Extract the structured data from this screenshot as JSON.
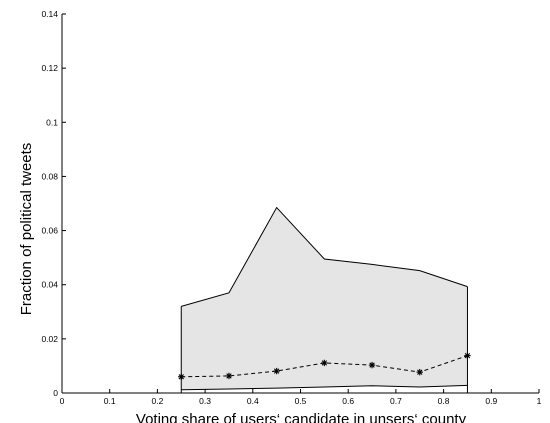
{
  "chart_data": {
    "type": "area",
    "title": "",
    "xlabel": "Voting share of users‘ candidate in unsers‘ county",
    "ylabel": "Fraction of political tweets",
    "xlim": [
      0,
      1
    ],
    "ylim": [
      0,
      0.14
    ],
    "xticks": [
      0,
      0.1,
      0.2,
      0.3,
      0.4,
      0.5,
      0.6,
      0.7,
      0.8,
      0.9,
      1
    ],
    "xtick_labels": [
      "0",
      "0.1",
      "0.2",
      "0.3",
      "0.4",
      "0.5",
      "0.6",
      "0.7",
      "0.8",
      "0.9",
      "1"
    ],
    "yticks": [
      0,
      0.02,
      0.04,
      0.06,
      0.08,
      0.1,
      0.12,
      0.14
    ],
    "ytick_labels": [
      "0",
      "0.02",
      "0.04",
      "0.06",
      "0.08",
      "0.1",
      "0.12",
      "0.14"
    ],
    "grid": false,
    "x": [
      0.25,
      0.35,
      0.45,
      0.55,
      0.65,
      0.75,
      0.85
    ],
    "band_upper": [
      0.032,
      0.037,
      0.0685,
      0.0495,
      0.0475,
      0.0452,
      0.0393
    ],
    "band_lower": [
      0.0012,
      0.0015,
      0.0018,
      0.0022,
      0.0027,
      0.0022,
      0.0028
    ],
    "series": [
      {
        "values": [
          0.006,
          0.0063,
          0.0081,
          0.0111,
          0.0103,
          0.0077,
          0.0138
        ],
        "style": "dashed",
        "marker": "asterisk"
      }
    ],
    "colors": {
      "band_fill": "#e5e5e5",
      "line": "#000000"
    }
  }
}
